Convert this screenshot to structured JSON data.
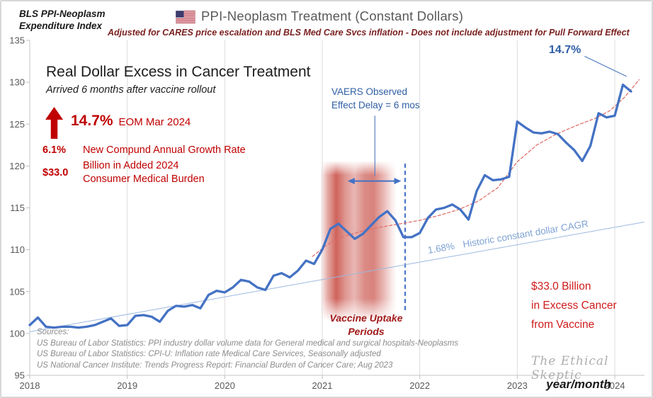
{
  "corner_label": {
    "line1": "BLS PPI-Neoplasm",
    "line2": "Expenditure Index"
  },
  "header": {
    "title": "PPI-Neoplasm Treatment (Constant Dollars)",
    "subtitle": "Adjusted for CARES price escalation and BLS Med Care Svcs inflation - Does not include adjustment for Pull Forward Effect"
  },
  "headline": {
    "title": "Real Dollar Excess in Cancer Treatment",
    "subtitle": "Arrived 6 months after vaccine rollout"
  },
  "stats": {
    "pct_change": {
      "value": "14.7%",
      "label": "EOM Mar 2024"
    },
    "cagr": {
      "value": "6.1%",
      "label": "New Compund Annual Growth Rate"
    },
    "burden": {
      "value": "$33.0",
      "label_line1": "Billion in Added 2024",
      "label_line2": "Consumer Medical Burden"
    }
  },
  "annotations": {
    "vaers": {
      "line1": "VAERS Observed",
      "line2": "Effect Delay = 6 mos"
    },
    "band_label": {
      "line1": "Vaccine Uptake",
      "line2": "Periods"
    },
    "cagr_line": {
      "value": "1.68%",
      "label": "Historic constant dollar CAGR"
    },
    "peak": {
      "value": "14.7%"
    },
    "excess": {
      "line1": "$33.0 Billion",
      "line2": "in Excess Cancer",
      "line3": "from Vaccine"
    },
    "watermark": "The Ethical Skeptic",
    "x_axis_label": "year/month"
  },
  "sources": {
    "title": "Sources:",
    "lines": [
      "US Bureau of Labor Statistics: PPI industry dollar volume data for General medical and surgical hospitals-Neoplasms",
      "US Bureau of Labor Statistics: CPI-U: Inflation rate Medical Care Services, Seasonally adjusted",
      "US National Cancer Institute: Trends Progress Report: Financial Burden of Cancer Care; Aug 2023"
    ]
  },
  "chart_data": {
    "type": "line",
    "title": "PPI-Neoplasm Treatment (Constant Dollars)",
    "xlabel": "year/month",
    "ylabel": "BLS PPI-Neoplasm Expenditure Index",
    "ylim": [
      95,
      135
    ],
    "xlim": [
      2018,
      2024.35
    ],
    "y_ticks": [
      95,
      100,
      105,
      110,
      115,
      120,
      125,
      130,
      135
    ],
    "x_ticks": [
      2018,
      2019,
      2020,
      2021,
      2022,
      2023,
      2024
    ],
    "grid": "vertical-year-lines",
    "legend": "none",
    "series": [
      {
        "name": "1.68% historic constant dollar CAGR baseline",
        "color": "#9bb9df",
        "width": 1,
        "dash": "",
        "points": [
          [
            2018.0,
            100.2
          ],
          [
            2024.3,
            113.3
          ]
        ]
      },
      {
        "name": "Post-vaccine exponential trend (14.7% EOM Mar 2024)",
        "color": "#e0716b",
        "width": 1.3,
        "dash": "4 3",
        "points": [
          [
            2020.9,
            109.2
          ],
          [
            2021.05,
            110.6
          ],
          [
            2021.2,
            111.5
          ],
          [
            2021.4,
            112.2
          ],
          [
            2021.6,
            112.7
          ],
          [
            2021.8,
            113.1
          ],
          [
            2022.0,
            113.5
          ],
          [
            2022.2,
            114.1
          ],
          [
            2022.4,
            114.8
          ],
          [
            2022.6,
            115.8
          ],
          [
            2022.8,
            117.4
          ],
          [
            2023.0,
            120.5
          ],
          [
            2023.2,
            122.5
          ],
          [
            2023.4,
            123.8
          ],
          [
            2023.6,
            124.8
          ],
          [
            2023.8,
            125.7
          ],
          [
            2023.95,
            126.6
          ],
          [
            2024.1,
            128.2
          ],
          [
            2024.25,
            130.3
          ]
        ]
      },
      {
        "name": "BLS PPI-Neoplasm expenditure index, constant dollars (monthly, Jan 2018 - Mar 2024)",
        "color": "#4472c4",
        "width": 3.3,
        "dash": "",
        "x_start": 2018.0,
        "x_step_months": 1,
        "values": [
          101.0,
          101.9,
          100.8,
          100.7,
          100.8,
          100.8,
          100.7,
          100.8,
          101.0,
          101.4,
          101.8,
          100.9,
          101.0,
          102.1,
          102.2,
          102.0,
          101.4,
          102.7,
          103.3,
          103.2,
          103.4,
          103.0,
          104.6,
          105.1,
          104.9,
          105.5,
          106.4,
          106.2,
          105.5,
          105.2,
          106.9,
          107.2,
          106.7,
          107.5,
          108.7,
          108.3,
          110.0,
          112.5,
          113.1,
          112.2,
          111.3,
          111.9,
          112.9,
          113.9,
          114.6,
          113.5,
          111.5,
          111.5,
          112.0,
          113.8,
          114.8,
          115.0,
          115.4,
          114.8,
          113.6,
          117.0,
          118.9,
          118.3,
          118.4,
          118.7,
          125.3,
          124.6,
          124.0,
          123.9,
          124.1,
          123.8,
          122.8,
          121.9,
          120.6,
          122.4,
          126.3,
          125.8,
          126.0,
          129.7,
          128.9
        ]
      }
    ],
    "overlays": {
      "vaccine_band": {
        "x0": 2020.98,
        "x1": 2021.76,
        "v_top": 120.6,
        "v_bottom": 101.5
      },
      "effect_delay_vline": {
        "x": 2021.84,
        "v_top": 120.3,
        "v_bottom": 102.8
      },
      "delay_arrow": {
        "x0": 2021.26,
        "x1": 2021.81,
        "v": 118.2
      },
      "vaers_connector": {
        "x": 2021.54,
        "v_top": 126.0,
        "v_bottom": 118.8
      },
      "peak_callout_line": {
        "x0": 2023.69,
        "v0": 133.1,
        "x1": 2024.12,
        "v1": 130.7
      }
    }
  }
}
